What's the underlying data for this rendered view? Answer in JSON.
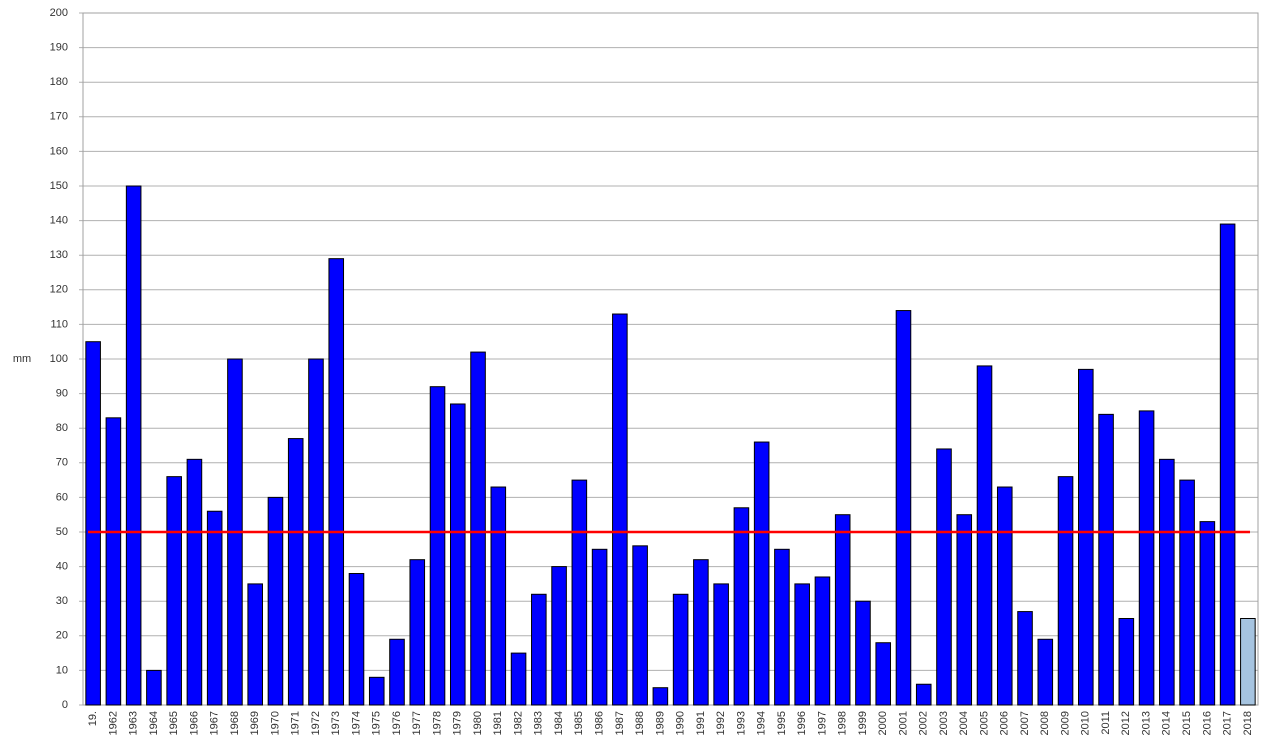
{
  "chart_data": {
    "type": "bar",
    "y_label": "mm",
    "categories": [
      "19.",
      "1962",
      "1963",
      "1964",
      "1965",
      "1966",
      "1967",
      "1968",
      "1969",
      "1970",
      "1971",
      "1972",
      "1973",
      "1974",
      "1975",
      "1976",
      "1977",
      "1978",
      "1979",
      "1980",
      "1981",
      "1982",
      "1983",
      "1984",
      "1985",
      "1986",
      "1987",
      "1988",
      "1989",
      "1990",
      "1991",
      "1992",
      "1993",
      "1994",
      "1995",
      "1996",
      "1997",
      "1998",
      "1999",
      "2000",
      "2001",
      "2002",
      "2003",
      "2004",
      "2005",
      "2006",
      "2007",
      "2008",
      "2009",
      "2010",
      "2011",
      "2012",
      "2013",
      "2014",
      "2015",
      "2016",
      "2017",
      "2018"
    ],
    "values": [
      105,
      83,
      150,
      10,
      66,
      71,
      56,
      100,
      35,
      60,
      77,
      100,
      129,
      38,
      8,
      19,
      42,
      92,
      87,
      102,
      63,
      15,
      32,
      40,
      65,
      45,
      113,
      46,
      5,
      32,
      42,
      35,
      57,
      76,
      45,
      35,
      37,
      55,
      30,
      18,
      114,
      6,
      74,
      55,
      98,
      63,
      27,
      19,
      66,
      97,
      84,
      25,
      85,
      71,
      65,
      53,
      139,
      25
    ],
    "colors": [
      "#0000ff",
      "#0000ff",
      "#0000ff",
      "#0000ff",
      "#0000ff",
      "#0000ff",
      "#0000ff",
      "#0000ff",
      "#0000ff",
      "#0000ff",
      "#0000ff",
      "#0000ff",
      "#0000ff",
      "#0000ff",
      "#0000ff",
      "#0000ff",
      "#0000ff",
      "#0000ff",
      "#0000ff",
      "#0000ff",
      "#0000ff",
      "#0000ff",
      "#0000ff",
      "#0000ff",
      "#0000ff",
      "#0000ff",
      "#0000ff",
      "#0000ff",
      "#0000ff",
      "#0000ff",
      "#0000ff",
      "#0000ff",
      "#0000ff",
      "#0000ff",
      "#0000ff",
      "#0000ff",
      "#0000ff",
      "#0000ff",
      "#0000ff",
      "#0000ff",
      "#0000ff",
      "#0000ff",
      "#0000ff",
      "#0000ff",
      "#0000ff",
      "#0000ff",
      "#0000ff",
      "#0000ff",
      "#0000ff",
      "#0000ff",
      "#0000ff",
      "#0000ff",
      "#0000ff",
      "#0000ff",
      "#0000ff",
      "#0000ff",
      "#0000ff",
      "#a6c4e0"
    ],
    "reference_line": {
      "value": 50,
      "color": "#ff0000"
    },
    "ylim": [
      0,
      200
    ],
    "yticks": [
      0,
      10,
      20,
      30,
      40,
      50,
      60,
      70,
      80,
      90,
      100,
      110,
      120,
      130,
      140,
      150,
      160,
      170,
      180,
      190,
      200
    ],
    "grid": true
  }
}
